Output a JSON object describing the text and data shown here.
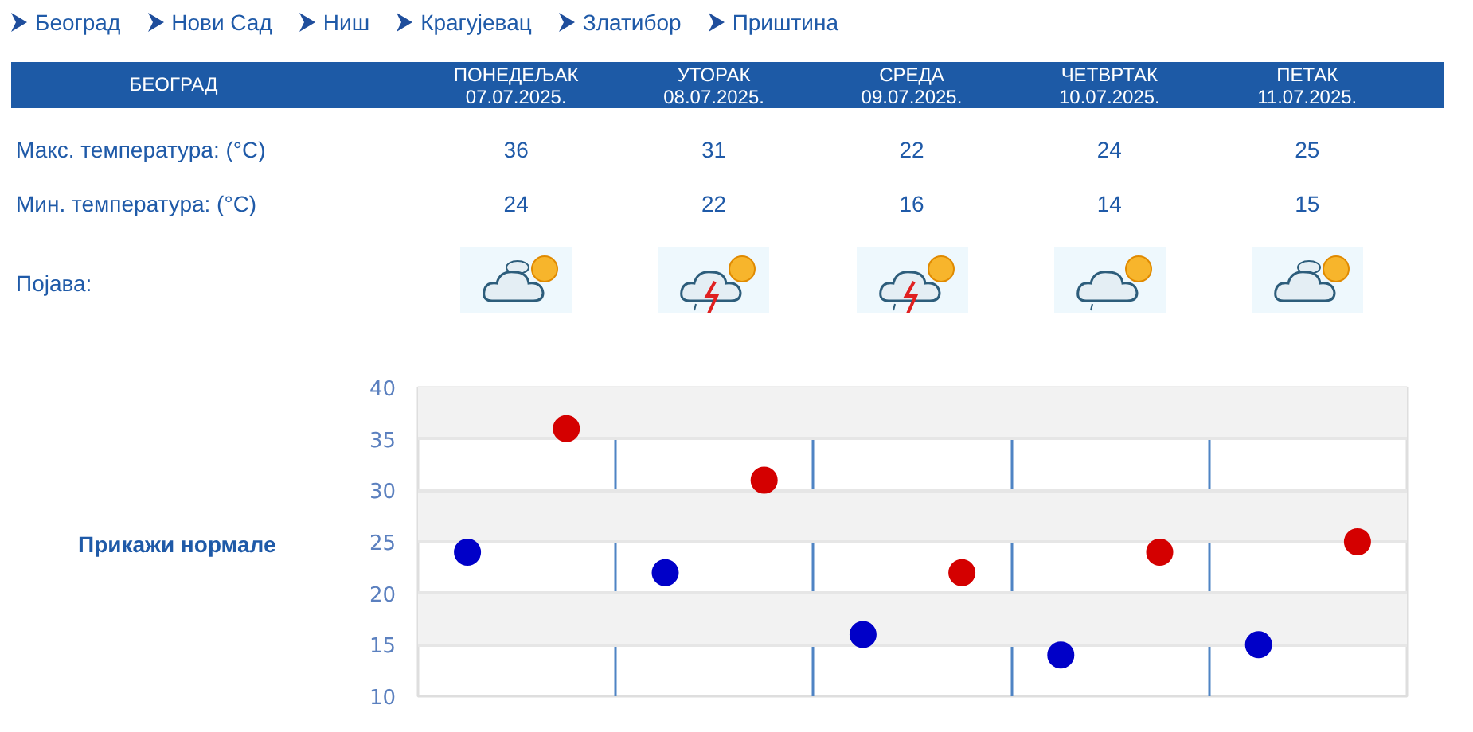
{
  "chart_data": {
    "type": "scatter",
    "title": "БЕОГРАД",
    "categories": [
      null,
      null,
      null,
      null,
      null
    ],
    "series": [
      {
        "color": "#d40000",
        "values": [
          36,
          31,
          22,
          24,
          25
        ]
      },
      {
        "color": "#0000c8",
        "values": [
          24,
          22,
          16,
          14,
          15
        ]
      }
    ],
    "ylim": [
      10,
      40
    ],
    "yticks": [
      10,
      15,
      20,
      25,
      30,
      35,
      40
    ],
    "grid": true,
    "marker": "circle",
    "data_labels": true,
    "tick_labels": "y",
    "annotations": [
      "Београд",
      "Нови Сад",
      "Ниш",
      "Крагујевац",
      "Златибор",
      "Приштина",
      "ПОНЕДЕЉАК\n07.07.2025.",
      "УТОРАК\n08.07.2025.",
      "СРЕДА\n09.07.2025.",
      "ЧЕТВРТАК\n10.07.2025.",
      "ПЕТАК\n11.07.2025.",
      "Макс. температура: (°C)",
      "Мин. температура: (°C)",
      "Појава:",
      "Прикажи нормале"
    ]
  }
}
